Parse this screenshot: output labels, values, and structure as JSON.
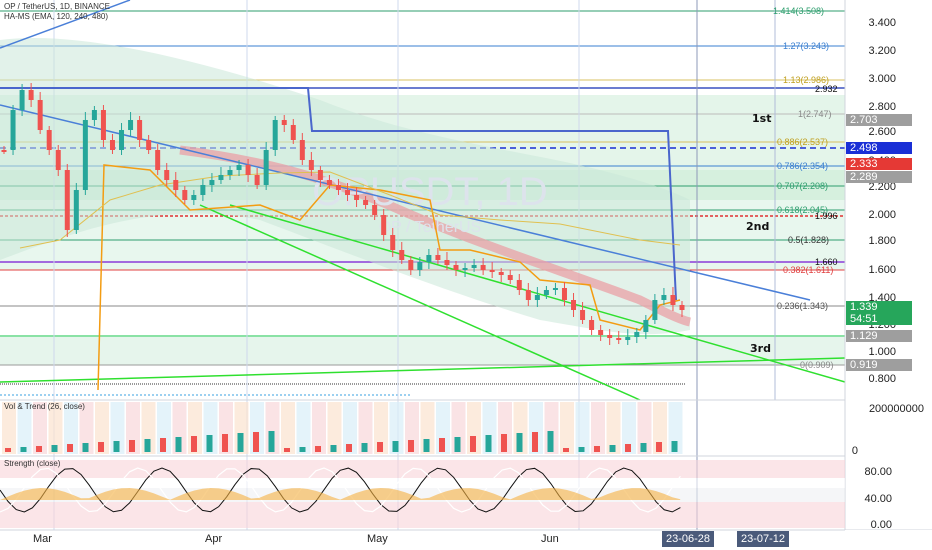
{
  "header": {
    "symbol_line": "OP / TetherUS, 1D, BINANCE",
    "indicator_line": "HA-MS (EMA, 120, 240, 480)"
  },
  "watermark": {
    "symbol": "OPUSDT, 1D",
    "name": "OP / TetherUS"
  },
  "price_axis": [
    "3.400",
    "3.200",
    "3.000",
    "2.800",
    "2.600",
    "2.400",
    "2.200",
    "2.000",
    "1.800",
    "1.600",
    "1.400",
    "1.200",
    "1.000",
    "0.800"
  ],
  "fib_levels": [
    {
      "label": "1.414(3.508)",
      "color": "#2e9e6e"
    },
    {
      "label": "1.27(3.243)",
      "color": "#3a7fd0"
    },
    {
      "label": "1.13(2.986)",
      "color": "#c0a020"
    },
    {
      "label": "2.932",
      "color": "#111111"
    },
    {
      "label": "1(2.747)",
      "color": "#888888"
    },
    {
      "label": "0.886(2.537)",
      "color": "#c0a020"
    },
    {
      "label": "0.786(2.354)",
      "color": "#3a7fd0"
    },
    {
      "label": "0.707(2.208)",
      "color": "#2e9e6e"
    },
    {
      "label": "0.618(2.045)",
      "color": "#2e9e6e"
    },
    {
      "label": "1.996",
      "color": "#111111"
    },
    {
      "label": "0.5(1.828)",
      "color": "#333333"
    },
    {
      "label": "1.660",
      "color": "#111111"
    },
    {
      "label": "0.382(1.611)",
      "color": "#e04040"
    },
    {
      "label": "0.236(1.343)",
      "color": "#555555"
    },
    {
      "label": "0(0.909)",
      "color": "#888888"
    }
  ],
  "level_labels": {
    "first": "1st",
    "second": "2nd",
    "third": "3rd"
  },
  "price_tags": [
    {
      "value": "2.703",
      "bg": "#9e9e9e"
    },
    {
      "value": "2.498",
      "bg": "#1a2fd6"
    },
    {
      "value": "2.333",
      "bg": "#e53935"
    },
    {
      "value": "2.289",
      "bg": "#9e9e9e"
    },
    {
      "value": "1.339",
      "bg": "#26a65b"
    },
    {
      "value": "54:51",
      "bg": "#26a65b"
    },
    {
      "value": "1.129",
      "bg": "#9e9e9e"
    },
    {
      "value": "0.919",
      "bg": "#9e9e9e"
    }
  ],
  "vol_panel": {
    "title": "Vol & Trend (26, close)",
    "axis_top": "200000000",
    "axis_bottom": "0"
  },
  "strength_panel": {
    "title": "Strength (close)",
    "axis": [
      "80.00",
      "40.00",
      "0.00"
    ]
  },
  "x_axis": {
    "labels": [
      "Mar",
      "Apr",
      "May",
      "Jun"
    ],
    "tags": [
      "23-06-28",
      "23-07-12"
    ]
  },
  "colors": {
    "up": "#26a69a",
    "down": "#ef5350",
    "fib_green": "#c8ecd2",
    "trend_blue": "#4a7fd8",
    "trend_green": "#2fe02f"
  }
}
